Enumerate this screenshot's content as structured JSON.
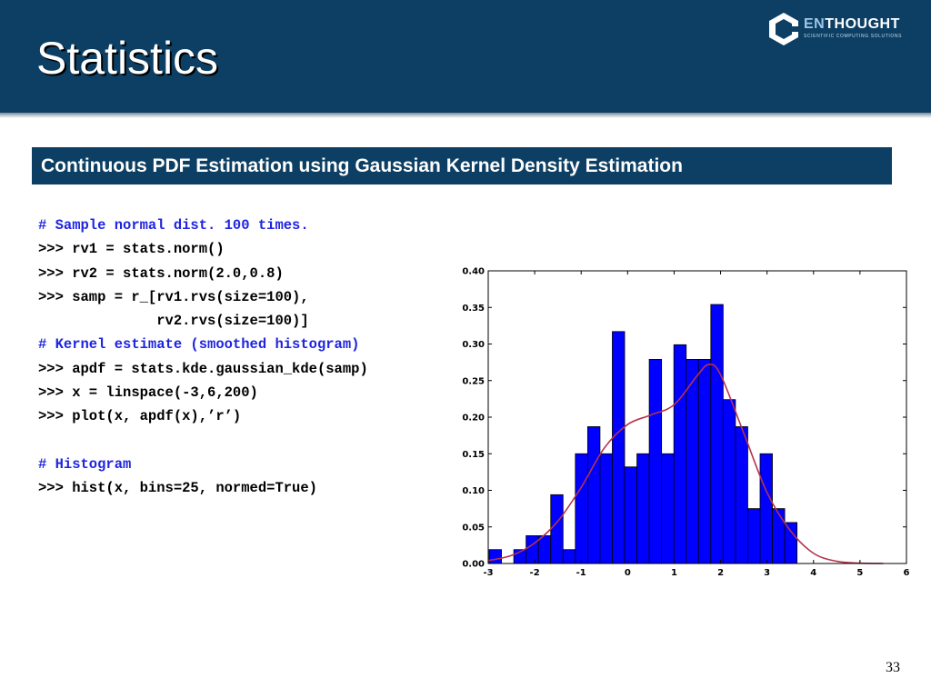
{
  "slide": {
    "title": "Statistics",
    "subtitle": "Continuous PDF Estimation using Gaussian Kernel Density Estimation",
    "page_number": "33"
  },
  "logo": {
    "name_prefix": "EN",
    "name_rest": "THOUGHT",
    "tagline": "SCIENTIFIC COMPUTING SOLUTIONS"
  },
  "code": {
    "lines": [
      {
        "text": "# Sample normal dist. 100 times.",
        "type": "comment"
      },
      {
        "text": ">>> rv1 = stats.norm()",
        "type": "code"
      },
      {
        "text": ">>> rv2 = stats.norm(2.0,0.8)",
        "type": "code"
      },
      {
        "text": ">>> samp = r_[rv1.rvs(size=100),",
        "type": "code"
      },
      {
        "text": "              rv2.rvs(size=100)]",
        "type": "code"
      },
      {
        "text": "# Kernel estimate (smoothed histogram)",
        "type": "comment"
      },
      {
        "text": ">>> apdf = stats.kde.gaussian_kde(samp)",
        "type": "code"
      },
      {
        "text": ">>> x = linspace(-3,6,200)",
        "type": "code"
      },
      {
        "text": ">>> plot(x, apdf(x),’r’)",
        "type": "code"
      },
      {
        "text": "",
        "type": "blank"
      },
      {
        "text": "# Histogram",
        "type": "comment"
      },
      {
        "text": ">>> hist(x, bins=25, normed=True)",
        "type": "code"
      }
    ]
  },
  "colors": {
    "header_bg": "#0c3f63",
    "comment": "#1f25e0",
    "bar_fill": "#0000ff",
    "curve": "#b5334a"
  },
  "chart_data": {
    "type": "bar",
    "bin_edges": [
      -2.98,
      -2.715,
      -2.45,
      -2.185,
      -1.92,
      -1.655,
      -1.39,
      -1.125,
      -0.86,
      -0.595,
      -0.33,
      -0.065,
      0.2,
      0.465,
      0.73,
      0.995,
      1.26,
      1.525,
      1.79,
      2.055,
      2.32,
      2.585,
      2.85,
      3.115,
      3.38,
      3.645
    ],
    "values": [
      0.019,
      0.0,
      0.019,
      0.038,
      0.038,
      0.094,
      0.019,
      0.15,
      0.187,
      0.15,
      0.317,
      0.132,
      0.15,
      0.279,
      0.15,
      0.299,
      0.279,
      0.279,
      0.354,
      0.224,
      0.187,
      0.075,
      0.15,
      0.075,
      0.056
    ],
    "kde_curve": {
      "x": [
        -3.0,
        -2.5,
        -2.0,
        -1.5,
        -1.0,
        -0.5,
        0.0,
        0.5,
        1.0,
        1.5,
        1.75,
        2.0,
        2.5,
        3.0,
        3.5,
        4.0,
        4.5,
        5.0,
        5.5
      ],
      "y": [
        0.004,
        0.011,
        0.028,
        0.058,
        0.104,
        0.158,
        0.19,
        0.203,
        0.217,
        0.257,
        0.272,
        0.258,
        0.178,
        0.097,
        0.045,
        0.014,
        0.003,
        0.0005,
        0.0
      ]
    },
    "xlim": [
      -3,
      6
    ],
    "ylim": [
      0,
      0.4
    ],
    "xticks": [
      "-3",
      "-2",
      "-1",
      "0",
      "1",
      "2",
      "3",
      "4",
      "5",
      "6"
    ],
    "yticks": [
      "0.00",
      "0.05",
      "0.10",
      "0.15",
      "0.20",
      "0.25",
      "0.30",
      "0.35",
      "0.40"
    ],
    "title": "",
    "xlabel": "",
    "ylabel": "",
    "grid": false
  }
}
